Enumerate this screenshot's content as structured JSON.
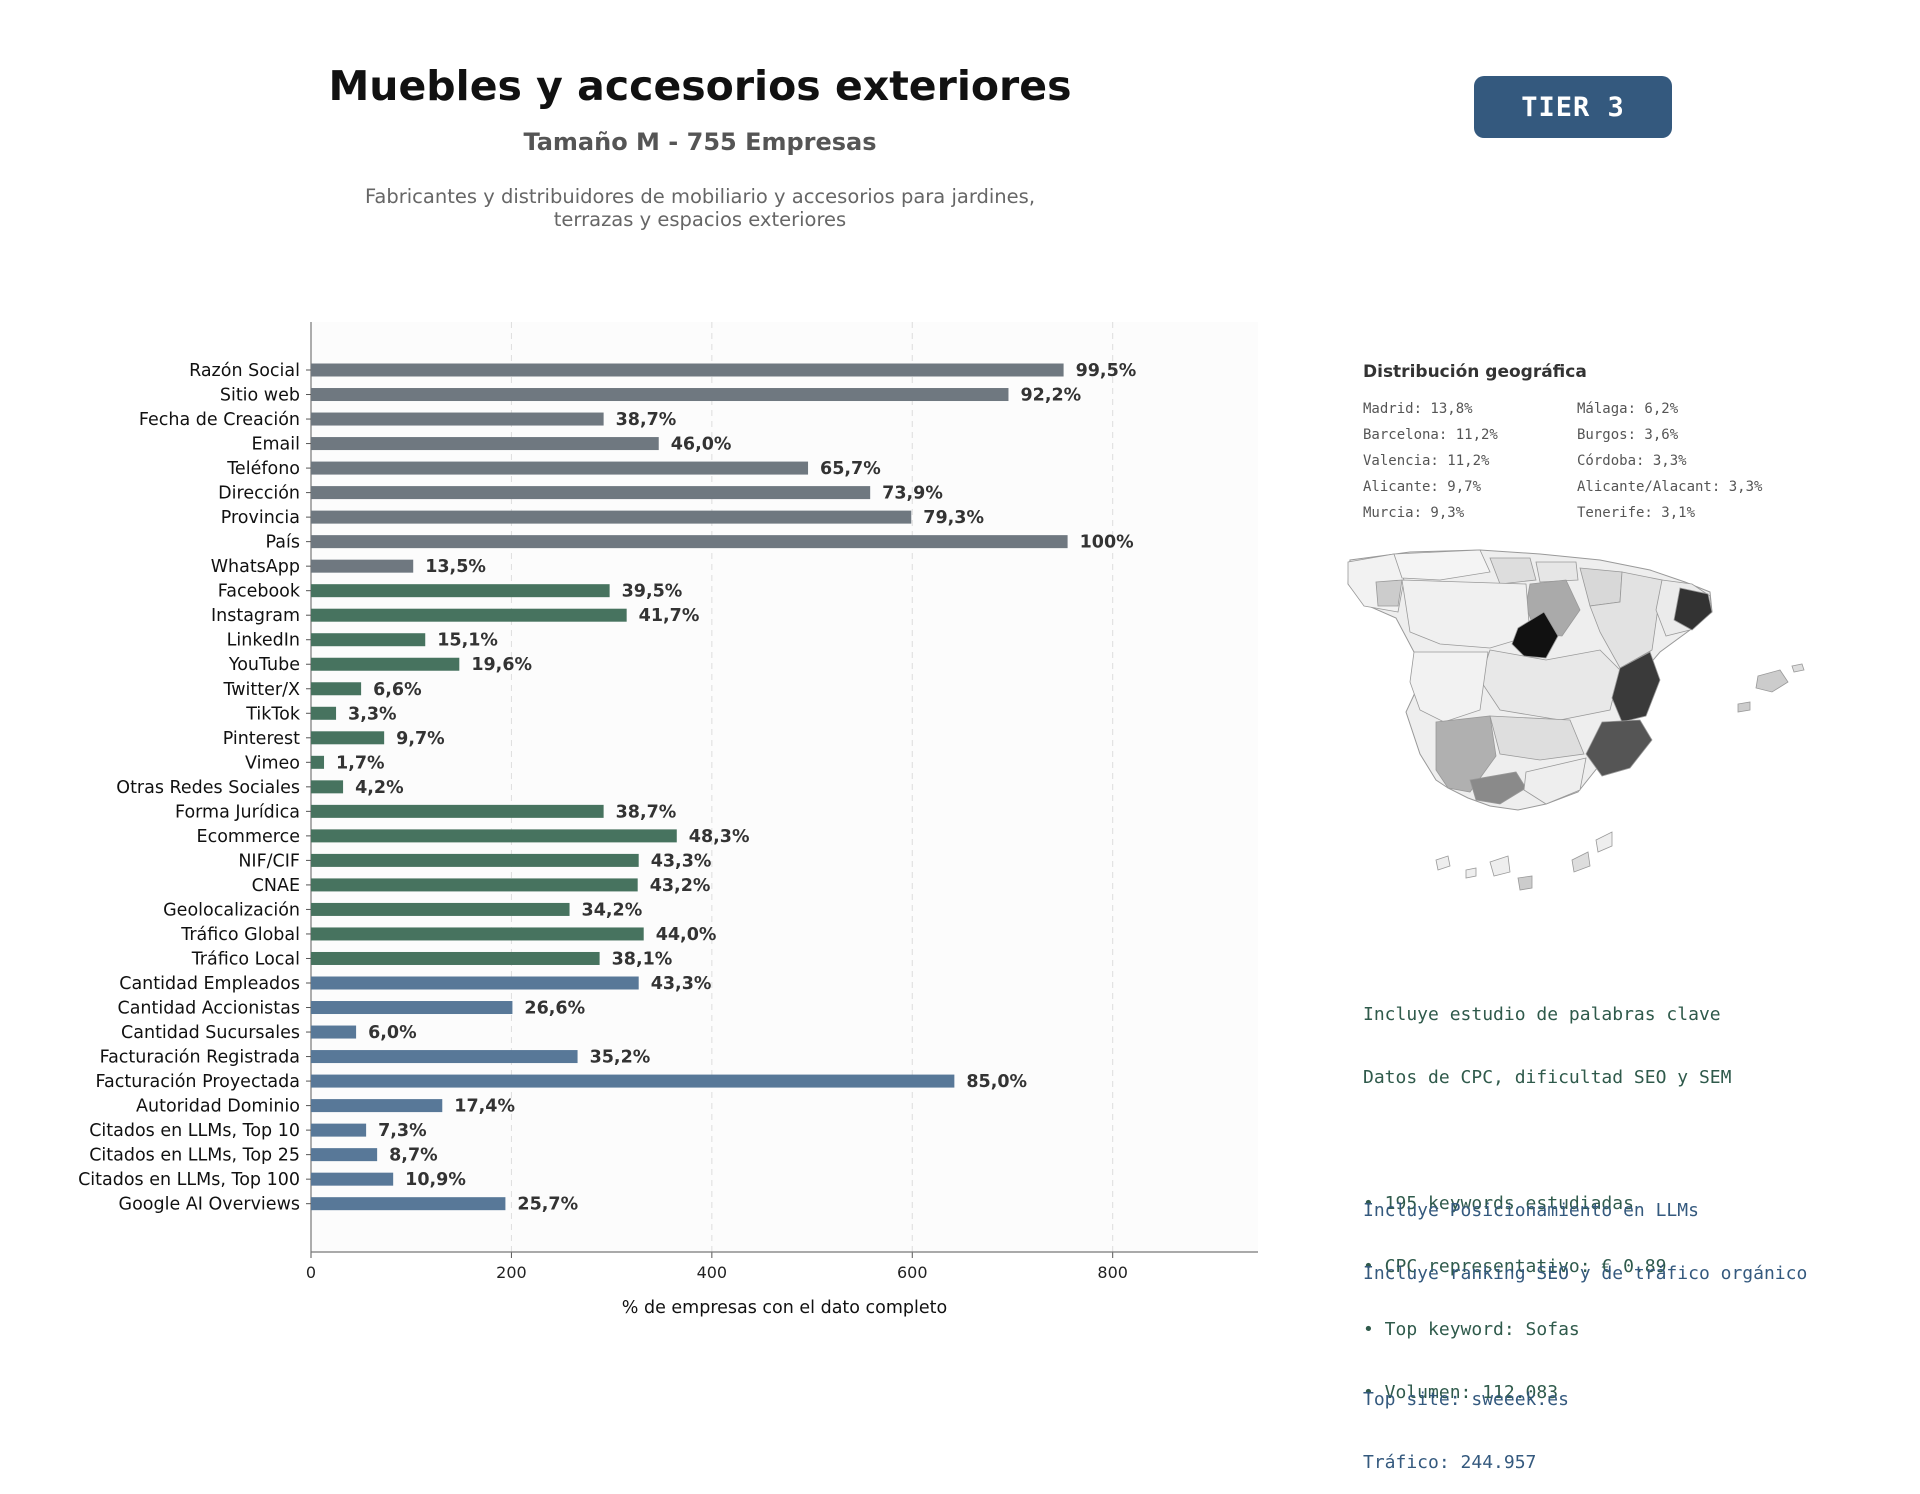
{
  "header": {
    "title": "Muebles y accesorios exteriores",
    "subtitle": "Tamaño M - 755 Empresas",
    "description_line1": "Fabricantes y distribuidores de mobiliario y accesorios para jardines,",
    "description_line2": "terrazas y espacios exteriores",
    "tier": "TIER 3"
  },
  "colors": {
    "gray": "#6f7880",
    "green": "#47735f",
    "blue": "#587898",
    "tier_bg": "#34597e"
  },
  "chart_data": {
    "type": "bar",
    "orientation": "horizontal",
    "xlabel": "% de empresas con el dato completo",
    "ylabel": "",
    "xlim": [
      0,
      945
    ],
    "xticks": [
      0,
      200,
      400,
      600,
      800
    ],
    "grid": "vertical dashed",
    "categories": [
      "Razón Social",
      "Sitio web",
      "Fecha de Creación",
      "Email",
      "Teléfono",
      "Dirección",
      "Provincia",
      "País",
      "WhatsApp",
      "Facebook",
      "Instagram",
      "LinkedIn",
      "YouTube",
      "Twitter/X",
      "TikTok",
      "Pinterest",
      "Vimeo",
      "Otras Redes Sociales",
      "Forma Jurídica",
      "Ecommerce",
      "NIF/CIF",
      "CNAE",
      "Geolocalización",
      "Tráfico Global",
      "Tráfico Local",
      "Cantidad Empleados",
      "Cantidad Accionistas",
      "Cantidad Sucursales",
      "Facturación Registrada",
      "Facturación Proyectada",
      "Autoridad Dominio",
      "Citados en LLMs, Top 10",
      "Citados en LLMs, Top 25",
      "Citados en LLMs, Top 100",
      "Google AI Overviews"
    ],
    "values": [
      751,
      696,
      292,
      347,
      496,
      558,
      599,
      755,
      102,
      298,
      315,
      114,
      148,
      50,
      25,
      73,
      13,
      32,
      292,
      365,
      327,
      326,
      258,
      332,
      288,
      327,
      201,
      45,
      266,
      642,
      131,
      55,
      66,
      82,
      194
    ],
    "labels": [
      "99,5%",
      "92,2%",
      "38,7%",
      "46,0%",
      "65,7%",
      "73,9%",
      "79,3%",
      "100%",
      "13,5%",
      "39,5%",
      "41,7%",
      "15,1%",
      "19,6%",
      "6,6%",
      "3,3%",
      "9,7%",
      "1,7%",
      "4,2%",
      "38,7%",
      "48,3%",
      "43,3%",
      "43,2%",
      "34,2%",
      "44,0%",
      "38,1%",
      "43,3%",
      "26,6%",
      "6,0%",
      "35,2%",
      "85,0%",
      "17,4%",
      "7,3%",
      "8,7%",
      "10,9%",
      "25,7%"
    ],
    "groups": [
      "gray",
      "gray",
      "gray",
      "gray",
      "gray",
      "gray",
      "gray",
      "gray",
      "gray",
      "green",
      "green",
      "green",
      "green",
      "green",
      "green",
      "green",
      "green",
      "green",
      "green",
      "green",
      "green",
      "green",
      "green",
      "green",
      "green",
      "blue",
      "blue",
      "blue",
      "blue",
      "blue",
      "blue",
      "blue",
      "blue",
      "blue",
      "blue"
    ]
  },
  "geo": {
    "title": "Distribución geográfica",
    "left": [
      "Madrid: 13,8%",
      "Barcelona: 11,2%",
      "Valencia: 11,2%",
      "Alicante: 9,7%",
      "Murcia: 9,3%"
    ],
    "right": [
      "Málaga: 6,2%",
      "Burgos: 3,6%",
      "Córdoba: 3,3%",
      "Alicante/Alacant: 3,3%",
      "Tenerife: 3,1%"
    ]
  },
  "keywords": {
    "line1": "Incluye estudio de palabras clave",
    "line2": "Datos de CPC, dificultad SEO y SEM",
    "bullets": [
      "• 195 keywords estudiadas",
      "• CPC representativo: € 0.89",
      "• Top keyword: Sofas",
      "• Volumen: 112.083"
    ]
  },
  "llm": {
    "line1": "Incluye Posicionamiento en LLMs",
    "line2": "Incluye ranking SEO y de tráfico orgánico",
    "top_site": "Top site: sweeek.es",
    "traffic": "Tráfico: 244.957"
  }
}
